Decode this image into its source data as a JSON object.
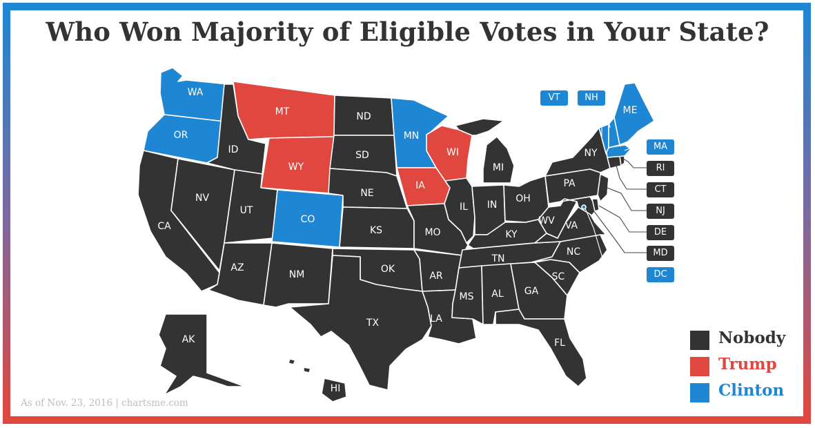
{
  "title": "Who Won Majority of Eligible Votes in Your State?",
  "colors": {
    "nobody": "#333333",
    "trump": "#e0483f",
    "clinton": "#1f86d3"
  },
  "legend": [
    {
      "key": "nobody",
      "label": "Nobody"
    },
    {
      "key": "trump",
      "label": "Trump"
    },
    {
      "key": "clinton",
      "label": "Clinton"
    }
  ],
  "states": {
    "WA": "clinton",
    "OR": "clinton",
    "CA": "nobody",
    "NV": "nobody",
    "ID": "nobody",
    "MT": "trump",
    "WY": "trump",
    "UT": "nobody",
    "AZ": "nobody",
    "CO": "clinton",
    "NM": "nobody",
    "ND": "nobody",
    "SD": "nobody",
    "NE": "nobody",
    "KS": "nobody",
    "OK": "nobody",
    "TX": "nobody",
    "MN": "clinton",
    "IA": "trump",
    "MO": "nobody",
    "AR": "nobody",
    "LA": "nobody",
    "WI": "trump",
    "IL": "nobody",
    "MI": "nobody",
    "IN": "nobody",
    "OH": "nobody",
    "KY": "nobody",
    "TN": "nobody",
    "MS": "nobody",
    "AL": "nobody",
    "GA": "nobody",
    "FL": "nobody",
    "SC": "nobody",
    "NC": "nobody",
    "VA": "nobody",
    "WV": "nobody",
    "PA": "nobody",
    "NY": "nobody",
    "AK": "nobody",
    "HI": "nobody",
    "VT": "clinton",
    "NH": "clinton",
    "ME": "clinton",
    "MA": "clinton",
    "RI": "nobody",
    "CT": "nobody",
    "NJ": "nobody",
    "DE": "nobody",
    "MD": "nobody",
    "DC": "clinton"
  },
  "callouts": [
    "VT",
    "NH",
    "MA",
    "RI",
    "CT",
    "NJ",
    "DE",
    "MD",
    "DC"
  ],
  "credit": "As of Nov. 23, 2016 | chartsme.com"
}
